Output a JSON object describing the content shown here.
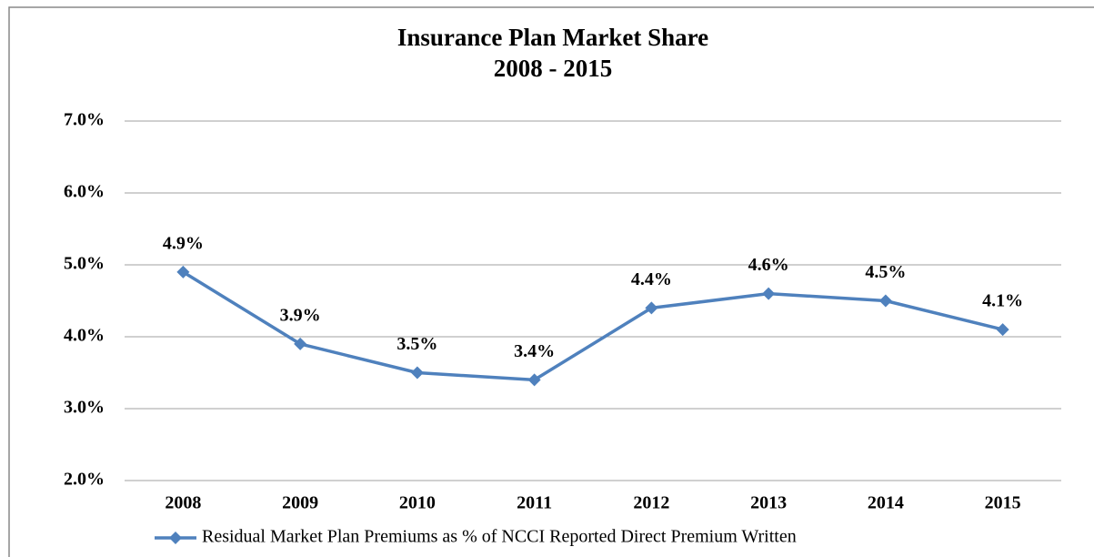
{
  "chart_data": {
    "type": "line",
    "title": "Insurance Plan Market Share",
    "subtitle": "2008 - 2015",
    "categories": [
      "2008",
      "2009",
      "2010",
      "2011",
      "2012",
      "2013",
      "2014",
      "2015"
    ],
    "series": [
      {
        "name": "Residual Market Plan Premiums as % of NCCI Reported Direct Premium Written",
        "color": "#4f81bd",
        "values": [
          4.9,
          3.9,
          3.5,
          3.4,
          4.4,
          4.6,
          4.5,
          4.1
        ],
        "value_labels": [
          "4.9%",
          "3.9%",
          "3.5%",
          "3.4%",
          "4.4%",
          "4.6%",
          "4.5%",
          "4.1%"
        ]
      }
    ],
    "ylim": [
      2,
      7
    ],
    "yticks": [
      {
        "value": 2,
        "label": "2.0%"
      },
      {
        "value": 3,
        "label": "3.0%"
      },
      {
        "value": 4,
        "label": "4.0%"
      },
      {
        "value": 5,
        "label": "5.0%"
      },
      {
        "value": 6,
        "label": "6.0%"
      },
      {
        "value": 7,
        "label": "7.0%"
      }
    ],
    "grid": true,
    "legend": "bottom"
  }
}
